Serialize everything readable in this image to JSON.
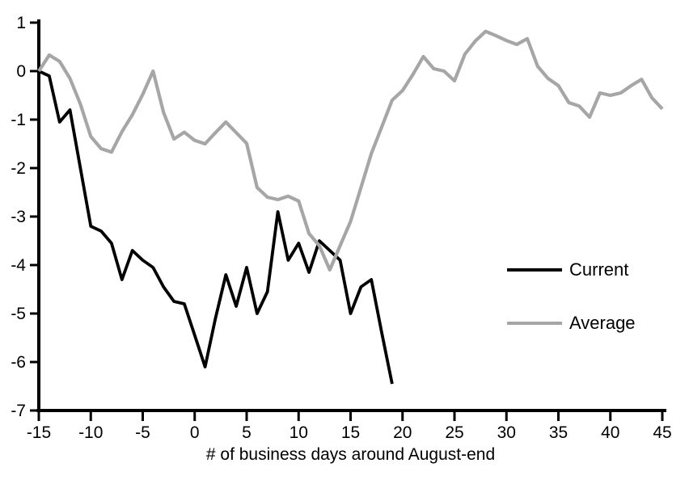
{
  "chart_data": {
    "type": "line",
    "title": "",
    "xlabel": "# of business days around August-end",
    "ylabel": "",
    "xlim": [
      -15,
      45
    ],
    "ylim": [
      -7,
      1
    ],
    "x_ticks": [
      -15,
      -10,
      -5,
      0,
      5,
      10,
      15,
      20,
      25,
      30,
      35,
      40,
      45
    ],
    "y_ticks": [
      1,
      0,
      -1,
      -2,
      -3,
      -4,
      -5,
      -6,
      -7
    ],
    "grid": false,
    "legend_position": "middle-right",
    "axis_color": "#000000",
    "series": [
      {
        "name": "Current",
        "color": "#000000",
        "stroke_width": 3.8,
        "x": [
          -15,
          -14,
          -13,
          -12,
          -11,
          -10,
          -9,
          -8,
          -7,
          -6,
          -5,
          -4,
          -3,
          -2,
          -1,
          0,
          1,
          2,
          3,
          4,
          5,
          6,
          7,
          8,
          9,
          10,
          11,
          12,
          13,
          14,
          15,
          16,
          17,
          18,
          19
        ],
        "values": [
          0.0,
          -0.1,
          -1.05,
          -0.8,
          -2.0,
          -3.2,
          -3.3,
          -3.55,
          -4.3,
          -3.7,
          -3.9,
          -4.05,
          -4.45,
          -4.75,
          -4.8,
          -5.45,
          -6.1,
          -5.1,
          -4.2,
          -4.85,
          -4.05,
          -5.0,
          -4.55,
          -2.9,
          -3.9,
          -3.55,
          -4.15,
          -3.5,
          -3.7,
          -3.9,
          -5.0,
          -4.45,
          -4.3,
          -5.4,
          -6.45
        ]
      },
      {
        "name": "Average",
        "color": "#A6A6A6",
        "stroke_width": 4.2,
        "x": [
          -15,
          -14,
          -13,
          -12,
          -11,
          -10,
          -9,
          -8,
          -7,
          -6,
          -5,
          -4,
          -3,
          -2,
          -1,
          0,
          1,
          2,
          3,
          4,
          5,
          6,
          7,
          8,
          9,
          10,
          11,
          12,
          13,
          14,
          15,
          16,
          17,
          18,
          19,
          20,
          21,
          22,
          23,
          24,
          25,
          26,
          27,
          28,
          29,
          30,
          31,
          32,
          33,
          34,
          35,
          36,
          37,
          38,
          39,
          40,
          41,
          42,
          43,
          44,
          45
        ],
        "values": [
          0.0,
          0.33,
          0.2,
          -0.15,
          -0.68,
          -1.35,
          -1.6,
          -1.67,
          -1.25,
          -0.9,
          -0.48,
          0.0,
          -0.85,
          -1.4,
          -1.26,
          -1.43,
          -1.5,
          -1.27,
          -1.05,
          -1.27,
          -1.49,
          -2.4,
          -2.6,
          -2.65,
          -2.58,
          -2.68,
          -3.35,
          -3.6,
          -4.1,
          -3.6,
          -3.1,
          -2.4,
          -1.7,
          -1.15,
          -0.6,
          -0.4,
          -0.07,
          0.3,
          0.05,
          0.0,
          -0.2,
          0.35,
          0.62,
          0.82,
          0.73,
          0.63,
          0.55,
          0.67,
          0.1,
          -0.15,
          -0.3,
          -0.65,
          -0.72,
          -0.95,
          -0.45,
          -0.5,
          -0.45,
          -0.3,
          -0.17,
          -0.55,
          -0.78
        ]
      }
    ]
  }
}
